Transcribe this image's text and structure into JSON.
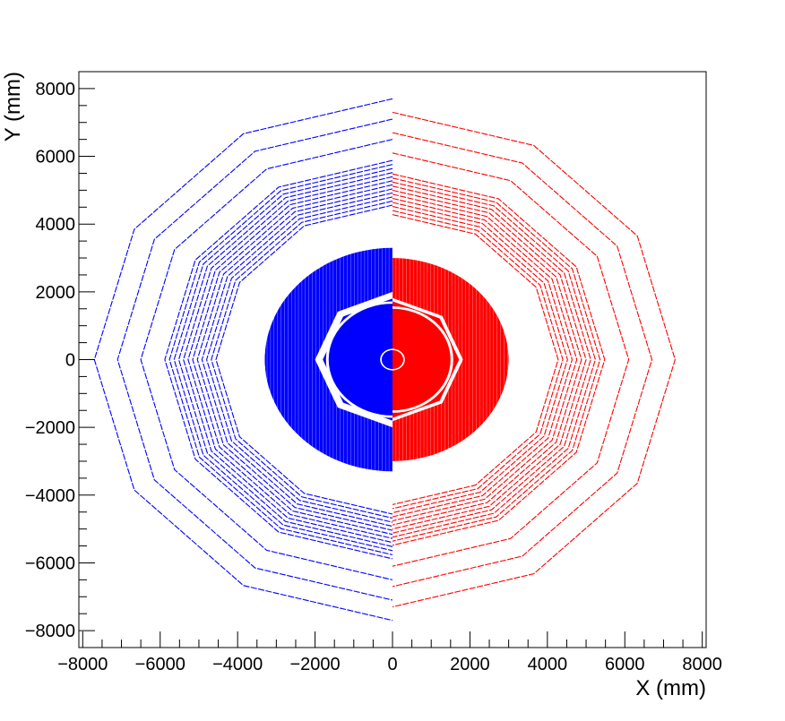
{
  "chart_data": {
    "type": "scatter",
    "title": "",
    "xlabel": "X (mm)",
    "ylabel": "Y (mm)",
    "xlim": [
      -8100,
      8100
    ],
    "ylim": [
      -8500,
      8500
    ],
    "xticks": [
      -8000,
      -6000,
      -4000,
      -2000,
      0,
      2000,
      4000,
      6000,
      8000
    ],
    "yticks": [
      -8000,
      -6000,
      -4000,
      -2000,
      0,
      2000,
      4000,
      6000,
      8000
    ],
    "xtick_labels": [
      "−8000",
      "−6000",
      "−4000",
      "−2000",
      "0",
      "2000",
      "4000",
      "6000",
      "8000"
    ],
    "ytick_labels": [
      "−8000",
      "−6000",
      "−4000",
      "−2000",
      "0",
      "2000",
      "4000",
      "6000",
      "8000"
    ],
    "grid": false,
    "legend": "none",
    "series": [
      {
        "color": "#0000ff",
        "side": "x<0",
        "outer_polygon_radii": [
          7700,
          7100,
          6500,
          5880,
          5760,
          5640,
          5520,
          5400,
          5280,
          5160,
          5040,
          4920,
          4800,
          4680,
          4560
        ],
        "barrel_radius": 3300,
        "octagon_ring": [
          1800,
          2000
        ],
        "inner_disk_radius": 1650,
        "beampipe_radius": 320
      },
      {
        "color": "#ff0000",
        "side": "x>0",
        "outer_polygon_radii": [
          7300,
          6700,
          6100,
          5480,
          5360,
          5240,
          5120,
          5000,
          4880,
          4760,
          4640,
          4520,
          4400,
          4280
        ],
        "barrel_radius": 3000,
        "octagon_ring": [
          1720,
          1820
        ],
        "inner_disk_radius": 1500,
        "beampipe_radius": 320
      }
    ]
  }
}
